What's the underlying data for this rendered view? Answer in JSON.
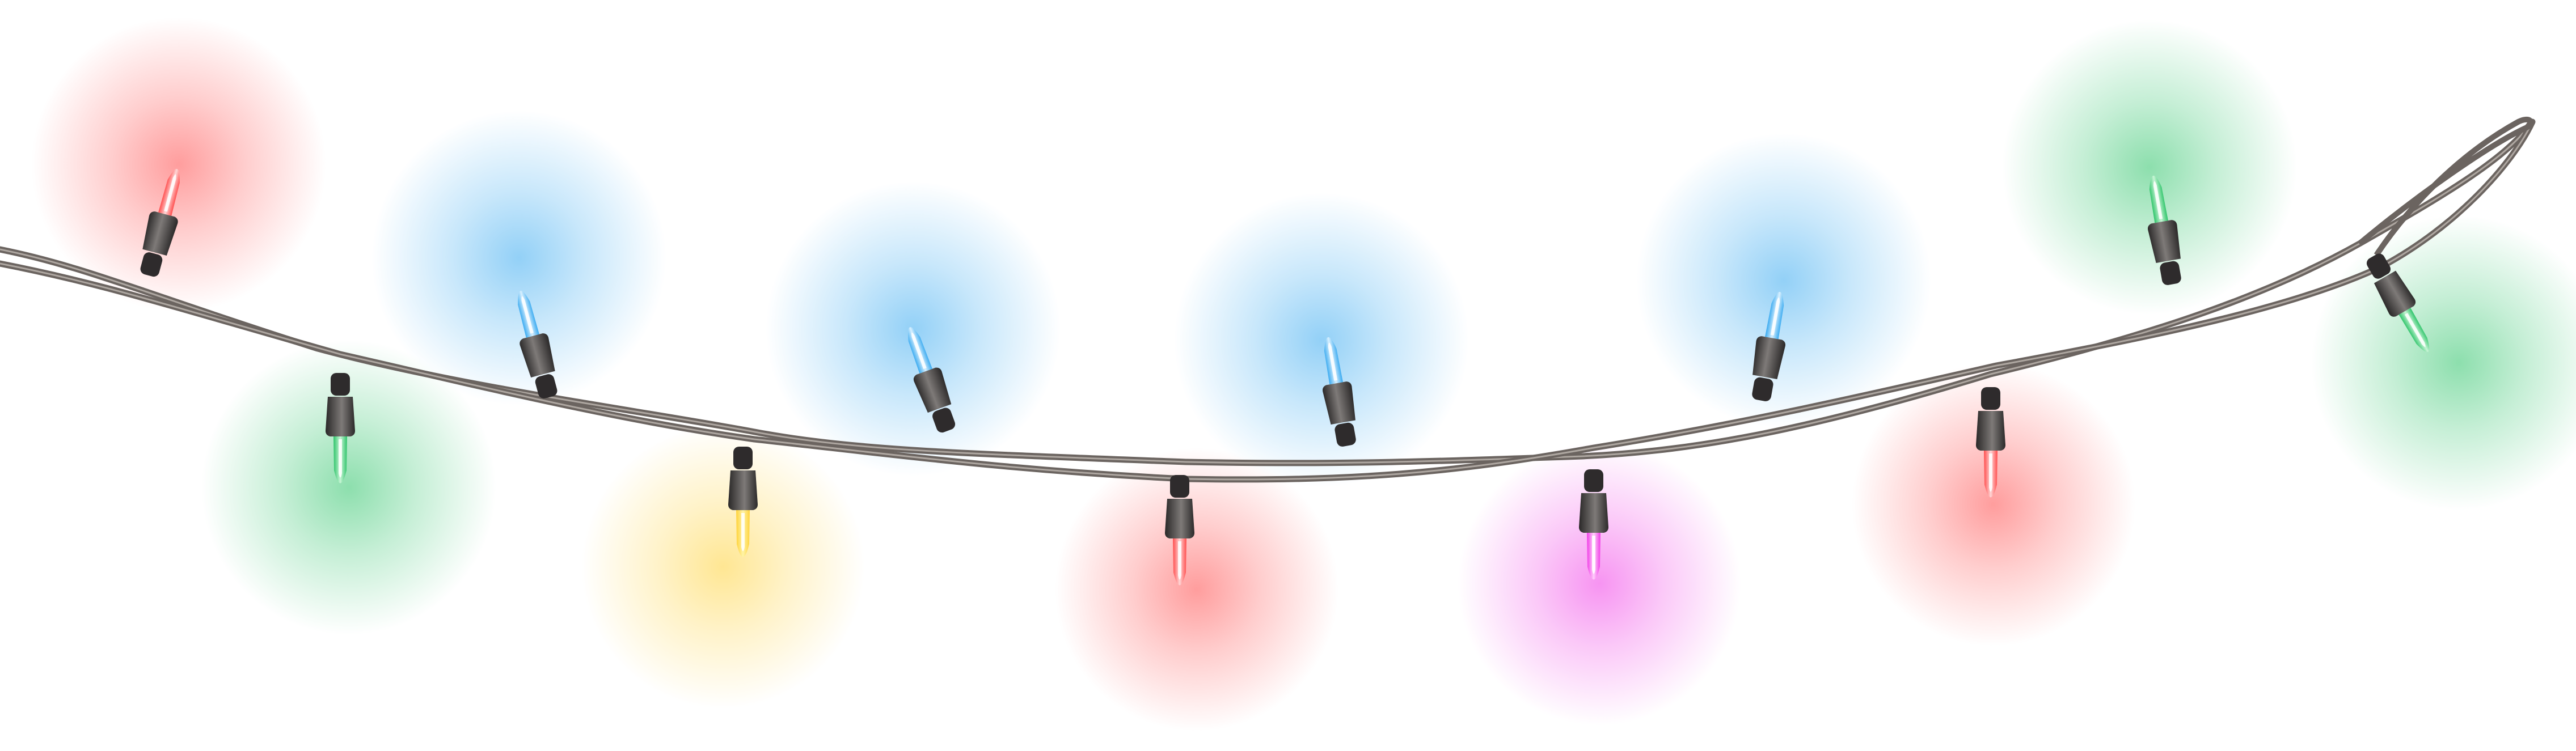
{
  "scene": {
    "background": "#ffffff",
    "subject": "string-of-christmas-lights"
  },
  "wire": {
    "color": "#6b6460",
    "highlight": "#bfb8b2"
  },
  "bulbs": [
    {
      "name": "bulb-red-1",
      "color": "#ff4d4d",
      "glass": "#ffd6d6"
    },
    {
      "name": "bulb-green-1",
      "color": "#2fc46a",
      "glass": "#c8f5d6"
    },
    {
      "name": "bulb-blue-1",
      "color": "#3aaaf0",
      "glass": "#d8f0ff"
    },
    {
      "name": "bulb-yellow-1",
      "color": "#ffd23a",
      "glass": "#fff4a8"
    },
    {
      "name": "bulb-blue-2",
      "color": "#3aaaf0",
      "glass": "#d8f0ff"
    },
    {
      "name": "bulb-red-2",
      "color": "#ff4d4d",
      "glass": "#ffd6d6"
    },
    {
      "name": "bulb-blue-3",
      "color": "#3aaaf0",
      "glass": "#d8f0ff"
    },
    {
      "name": "bulb-magenta-1",
      "color": "#f03ce6",
      "glass": "#ffd0fb"
    },
    {
      "name": "bulb-blue-4",
      "color": "#3aaaf0",
      "glass": "#d8f0ff"
    },
    {
      "name": "bulb-red-3",
      "color": "#ff4d4d",
      "glass": "#ffd6d6"
    },
    {
      "name": "bulb-green-2",
      "color": "#2fc46a",
      "glass": "#c8f5d6"
    },
    {
      "name": "bulb-green-3",
      "color": "#2fc46a",
      "glass": "#c8f5d6"
    }
  ]
}
